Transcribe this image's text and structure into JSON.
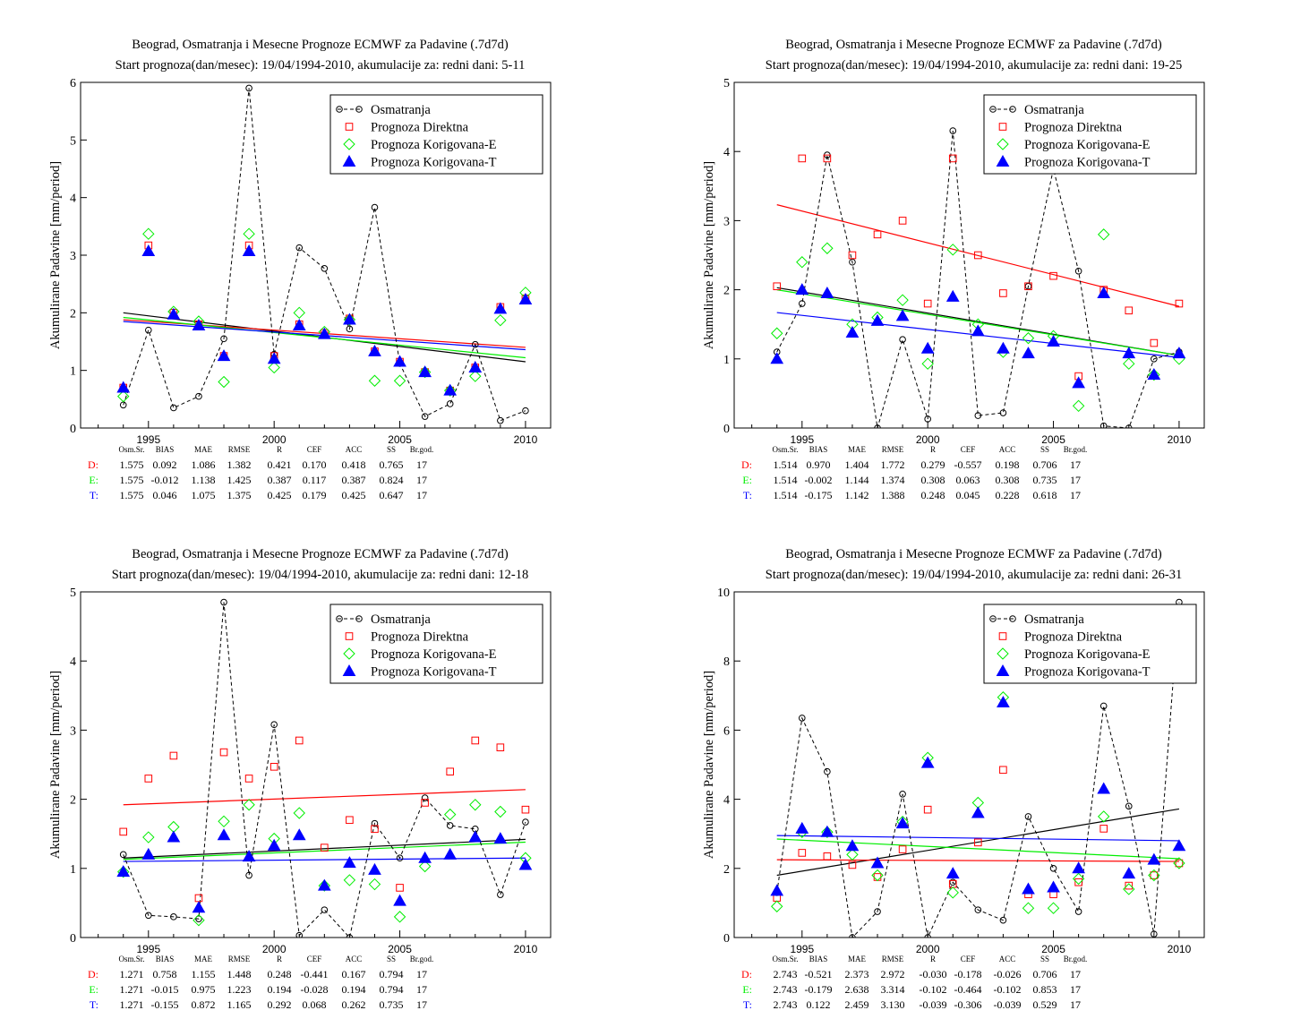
{
  "figure": {
    "background": "#ffffff"
  },
  "style": {
    "colors": {
      "obs": "#000000",
      "D": "#ff0000",
      "E": "#00ee00",
      "T": "#0000ff"
    },
    "marker_shapes": {
      "obs": "circle",
      "D": "square",
      "E": "diamond",
      "T": "filled-triangle"
    },
    "legend_placement": "top-right",
    "grid": false
  },
  "stats_header": [
    "Osm.Sr.",
    "BIAS",
    "MAE",
    "RMSE",
    "R",
    "CEF",
    "ACC",
    "SS",
    "Br.god."
  ],
  "chart_data": [
    {
      "type": "scatter",
      "title": "Beograd, Osmatranja i Mesecne Prognoze ECMWF za Padavine (.7d7d)",
      "subtitle": "Start prognoza(dan/mesec): 19/04/1994-2010, akumulacije za: redni dani: 5-11",
      "ylabel": "Akumulirane Padavine [mm/period]",
      "xlabel": "",
      "xlim": [
        1992.3,
        2011
      ],
      "ylim": [
        0,
        6
      ],
      "xticks": [
        1995,
        2000,
        2005,
        2010
      ],
      "yticks": [
        0,
        1,
        2,
        3,
        4,
        5,
        6
      ],
      "legend": [
        "Osmatranja",
        "Prognoza Direktna",
        "Prognoza Korigovana-E",
        "Prognoza Korigovana-T"
      ],
      "x": [
        1994,
        1995,
        1996,
        1997,
        1998,
        1999,
        2000,
        2001,
        2002,
        2003,
        2004,
        2005,
        2006,
        2007,
        2008,
        2009,
        2010
      ],
      "series": [
        {
          "name": "Osmatranja",
          "values": [
            0.4,
            1.7,
            0.35,
            0.55,
            1.55,
            5.9,
            1.28,
            3.13,
            2.77,
            1.72,
            3.83,
            1.12,
            0.2,
            0.42,
            1.45,
            0.13,
            0.3
          ]
        },
        {
          "name": "Prognoza Direktna",
          "values": [
            0.7,
            3.17,
            2.0,
            1.8,
            1.25,
            3.17,
            1.25,
            1.8,
            1.65,
            1.9,
            1.33,
            1.15,
            0.97,
            0.65,
            1.05,
            2.1,
            2.25
          ]
        },
        {
          "name": "Prognoza Korigovana-E",
          "values": [
            0.55,
            3.37,
            2.02,
            1.85,
            0.8,
            3.37,
            1.05,
            2.0,
            1.67,
            1.88,
            0.82,
            0.82,
            0.97,
            0.65,
            0.9,
            1.87,
            2.35
          ]
        },
        {
          "name": "Prognoza Korigovana-T",
          "values": [
            0.7,
            3.07,
            1.97,
            1.78,
            1.25,
            3.07,
            1.2,
            1.78,
            1.63,
            1.88,
            1.33,
            1.15,
            0.97,
            0.65,
            1.05,
            2.07,
            2.23
          ]
        }
      ],
      "trends": [
        {
          "series": "Osmatranja",
          "from": [
            1994,
            2.0
          ],
          "to": [
            2010,
            1.15
          ]
        },
        {
          "series": "Prognoza Direktna",
          "from": [
            1994,
            1.88
          ],
          "to": [
            2010,
            1.4
          ]
        },
        {
          "series": "Prognoza Korigovana-E",
          "from": [
            1994,
            1.92
          ],
          "to": [
            2010,
            1.22
          ]
        },
        {
          "series": "Prognoza Korigovana-T",
          "from": [
            1994,
            1.85
          ],
          "to": [
            2010,
            1.36
          ]
        }
      ],
      "stats": [
        {
          "label": "D:",
          "values": [
            "1.575",
            "0.092",
            "1.086",
            "1.382",
            "0.421",
            "0.170",
            "0.418",
            "0.765",
            "17"
          ]
        },
        {
          "label": "E:",
          "values": [
            "1.575",
            "-0.012",
            "1.138",
            "1.425",
            "0.387",
            "0.117",
            "0.387",
            "0.824",
            "17"
          ]
        },
        {
          "label": "T:",
          "values": [
            "1.575",
            "0.046",
            "1.075",
            "1.375",
            "0.425",
            "0.179",
            "0.425",
            "0.647",
            "17"
          ]
        }
      ]
    },
    {
      "type": "scatter",
      "title": "Beograd, Osmatranja i Mesecne Prognoze ECMWF za Padavine (.7d7d)",
      "subtitle": "Start prognoza(dan/mesec): 19/04/1994-2010, akumulacije za: redni dani: 19-25",
      "ylabel": "Akumulirane Padavine [mm/period]",
      "xlabel": "",
      "xlim": [
        1992.3,
        2011
      ],
      "ylim": [
        0,
        5
      ],
      "xticks": [
        1995,
        2000,
        2005,
        2010
      ],
      "yticks": [
        0,
        1,
        2,
        3,
        4,
        5
      ],
      "legend": [
        "Osmatranja",
        "Prognoza Direktna",
        "Prognoza Korigovana-E",
        "Prognoza Korigovana-T"
      ],
      "x": [
        1994,
        1995,
        1996,
        1997,
        1998,
        1999,
        2000,
        2001,
        2002,
        2003,
        2004,
        2005,
        2006,
        2007,
        2008,
        2009,
        2010
      ],
      "series": [
        {
          "name": "Osmatranja",
          "values": [
            1.1,
            1.8,
            3.95,
            2.4,
            0.0,
            1.28,
            0.13,
            4.3,
            0.18,
            0.22,
            2.05,
            3.75,
            2.27,
            0.03,
            0.0,
            1.0,
            1.1
          ]
        },
        {
          "name": "Prognoza Direktna",
          "values": [
            2.05,
            3.9,
            3.9,
            2.5,
            2.8,
            3.0,
            1.8,
            3.9,
            2.5,
            1.95,
            2.05,
            2.2,
            0.75,
            2.0,
            1.7,
            1.23,
            1.8
          ]
        },
        {
          "name": "Prognoza Korigovana-E",
          "values": [
            1.37,
            2.4,
            2.6,
            1.5,
            1.6,
            1.85,
            0.93,
            2.58,
            1.5,
            1.1,
            1.3,
            1.33,
            0.32,
            2.8,
            0.93,
            0.77,
            1.0
          ]
        },
        {
          "name": "Prognoza Korigovana-T",
          "values": [
            1.0,
            2.0,
            1.95,
            1.38,
            1.55,
            1.62,
            1.15,
            1.9,
            1.4,
            1.15,
            1.08,
            1.25,
            0.65,
            1.95,
            1.08,
            0.77,
            1.08
          ]
        }
      ],
      "trends": [
        {
          "series": "Osmatranja",
          "from": [
            1994,
            2.03
          ],
          "to": [
            2010,
            1.05
          ]
        },
        {
          "series": "Prognoza Direktna",
          "from": [
            1994,
            3.23
          ],
          "to": [
            2010,
            1.76
          ]
        },
        {
          "series": "Prognoza Korigovana-E",
          "from": [
            1994,
            2.0
          ],
          "to": [
            2010,
            1.05
          ]
        },
        {
          "series": "Prognoza Korigovana-T",
          "from": [
            1994,
            1.67
          ],
          "to": [
            2010,
            1.02
          ]
        }
      ],
      "stats": [
        {
          "label": "D:",
          "values": [
            "1.514",
            "0.970",
            "1.404",
            "1.772",
            "0.279",
            "-0.557",
            "0.198",
            "0.706",
            "17"
          ]
        },
        {
          "label": "E:",
          "values": [
            "1.514",
            "-0.002",
            "1.144",
            "1.374",
            "0.308",
            "0.063",
            "0.308",
            "0.735",
            "17"
          ]
        },
        {
          "label": "T:",
          "values": [
            "1.514",
            "-0.175",
            "1.142",
            "1.388",
            "0.248",
            "0.045",
            "0.228",
            "0.618",
            "17"
          ]
        }
      ]
    },
    {
      "type": "scatter",
      "title": "Beograd, Osmatranja i Mesecne Prognoze ECMWF za Padavine (.7d7d)",
      "subtitle": "Start prognoza(dan/mesec): 19/04/1994-2010, akumulacije za: redni dani: 12-18",
      "ylabel": "Akumulirane Padavine [mm/period]",
      "xlabel": "",
      "xlim": [
        1992.3,
        2011
      ],
      "ylim": [
        0,
        5
      ],
      "xticks": [
        1995,
        2000,
        2005,
        2010
      ],
      "yticks": [
        0,
        1,
        2,
        3,
        4,
        5
      ],
      "legend": [
        "Osmatranja",
        "Prognoza Direktna",
        "Prognoza Korigovana-E",
        "Prognoza Korigovana-T"
      ],
      "x": [
        1994,
        1995,
        1996,
        1997,
        1998,
        1999,
        2000,
        2001,
        2002,
        2003,
        2004,
        2005,
        2006,
        2007,
        2008,
        2009,
        2010
      ],
      "series": [
        {
          "name": "Osmatranja",
          "values": [
            1.2,
            0.32,
            0.3,
            0.27,
            4.85,
            0.9,
            3.08,
            0.03,
            0.4,
            0.0,
            1.65,
            1.15,
            2.02,
            1.62,
            1.57,
            0.62,
            1.67
          ]
        },
        {
          "name": "Prognoza Direktna",
          "values": [
            1.53,
            2.3,
            2.63,
            0.57,
            2.68,
            2.3,
            2.47,
            2.85,
            1.3,
            1.7,
            1.57,
            0.72,
            1.95,
            2.4,
            2.85,
            2.75,
            1.85
          ]
        },
        {
          "name": "Prognoza Korigovana-E",
          "values": [
            0.95,
            1.45,
            1.6,
            0.25,
            1.68,
            1.92,
            1.43,
            1.8,
            0.75,
            0.83,
            0.77,
            0.3,
            1.03,
            1.78,
            1.92,
            1.82,
            1.15
          ]
        },
        {
          "name": "Prognoza Korigovana-T",
          "values": [
            0.95,
            1.2,
            1.45,
            0.43,
            1.48,
            1.17,
            1.33,
            1.48,
            0.75,
            1.08,
            0.98,
            0.53,
            1.15,
            1.2,
            1.45,
            1.43,
            1.05
          ]
        }
      ],
      "trends": [
        {
          "series": "Osmatranja",
          "from": [
            1994,
            1.15
          ],
          "to": [
            2010,
            1.42
          ]
        },
        {
          "series": "Prognoza Direktna",
          "from": [
            1994,
            1.92
          ],
          "to": [
            2010,
            2.14
          ]
        },
        {
          "series": "Prognoza Korigovana-E",
          "from": [
            1994,
            1.13
          ],
          "to": [
            2010,
            1.38
          ]
        },
        {
          "series": "Prognoza Korigovana-T",
          "from": [
            1994,
            1.1
          ],
          "to": [
            2010,
            1.15
          ]
        }
      ],
      "stats": [
        {
          "label": "D:",
          "values": [
            "1.271",
            "0.758",
            "1.155",
            "1.448",
            "0.248",
            "-0.441",
            "0.167",
            "0.794",
            "17"
          ]
        },
        {
          "label": "E:",
          "values": [
            "1.271",
            "-0.015",
            "0.975",
            "1.223",
            "0.194",
            "-0.028",
            "0.194",
            "0.794",
            "17"
          ]
        },
        {
          "label": "T:",
          "values": [
            "1.271",
            "-0.155",
            "0.872",
            "1.165",
            "0.292",
            "0.068",
            "0.262",
            "0.735",
            "17"
          ]
        }
      ]
    },
    {
      "type": "scatter",
      "title": "Beograd, Osmatranja i Mesecne Prognoze ECMWF za Padavine (.7d7d)",
      "subtitle": "Start prognoza(dan/mesec): 19/04/1994-2010, akumulacije za: redni dani: 26-31",
      "ylabel": "Akumulirane Padavine [mm/period]",
      "xlabel": "",
      "xlim": [
        1992.3,
        2011
      ],
      "ylim": [
        0,
        10
      ],
      "xticks": [
        1995,
        2000,
        2005,
        2010
      ],
      "yticks": [
        0,
        2,
        4,
        6,
        8,
        10
      ],
      "legend": [
        "Osmatranja",
        "Prognoza Direktna",
        "Prognoza Korigovana-E",
        "Prognoza Korigovana-T"
      ],
      "x": [
        1994,
        1995,
        1996,
        1997,
        1998,
        1999,
        2000,
        2001,
        2002,
        2003,
        2004,
        2005,
        2006,
        2007,
        2008,
        2009,
        2010
      ],
      "series": [
        {
          "name": "Osmatranja",
          "values": [
            1.3,
            6.35,
            4.8,
            0.0,
            0.75,
            4.15,
            0.0,
            1.6,
            0.8,
            0.5,
            3.5,
            2.0,
            0.75,
            6.7,
            3.8,
            0.1,
            9.7
          ]
        },
        {
          "name": "Prognoza Direktna",
          "values": [
            1.15,
            2.45,
            2.35,
            2.1,
            1.75,
            2.55,
            3.7,
            1.55,
            2.75,
            4.85,
            1.25,
            1.25,
            1.6,
            3.15,
            1.5,
            1.8,
            2.15
          ]
        },
        {
          "name": "Prognoza Korigovana-E",
          "values": [
            0.9,
            3.05,
            3.05,
            2.4,
            1.8,
            3.35,
            5.2,
            1.3,
            3.9,
            6.95,
            0.85,
            0.85,
            1.7,
            3.5,
            1.4,
            1.8,
            2.15
          ]
        },
        {
          "name": "Prognoza Korigovana-T",
          "values": [
            1.35,
            3.15,
            3.05,
            2.65,
            2.15,
            3.3,
            5.05,
            1.85,
            3.6,
            6.8,
            1.4,
            1.45,
            2.0,
            4.3,
            1.85,
            2.25,
            2.65
          ]
        }
      ],
      "trends": [
        {
          "series": "Osmatranja",
          "from": [
            1994,
            1.8
          ],
          "to": [
            2010,
            3.72
          ]
        },
        {
          "series": "Prognoza Direktna",
          "from": [
            1994,
            2.25
          ],
          "to": [
            2010,
            2.2
          ]
        },
        {
          "series": "Prognoza Korigovana-E",
          "from": [
            1994,
            2.85
          ],
          "to": [
            2010,
            2.28
          ]
        },
        {
          "series": "Prognoza Korigovana-T",
          "from": [
            1994,
            2.95
          ],
          "to": [
            2010,
            2.8
          ]
        }
      ],
      "stats": [
        {
          "label": "D:",
          "values": [
            "2.743",
            "-0.521",
            "2.373",
            "2.972",
            "-0.030",
            "-0.178",
            "-0.026",
            "0.706",
            "17"
          ]
        },
        {
          "label": "E:",
          "values": [
            "2.743",
            "-0.179",
            "2.638",
            "3.314",
            "-0.102",
            "-0.464",
            "-0.102",
            "0.853",
            "17"
          ]
        },
        {
          "label": "T:",
          "values": [
            "2.743",
            "0.122",
            "2.459",
            "3.130",
            "-0.039",
            "-0.306",
            "-0.039",
            "0.529",
            "17"
          ]
        }
      ]
    }
  ]
}
